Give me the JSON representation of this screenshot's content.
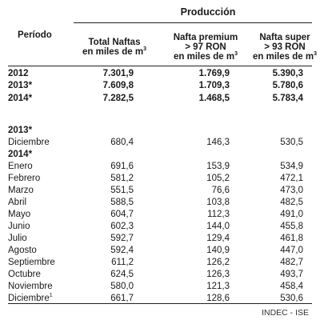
{
  "header": {
    "group_title": "Producción",
    "period_label": "Período",
    "col1": {
      "line1": "Total Naftas",
      "line2_prefix": "en miles de m",
      "line2_sup": "3"
    },
    "col2": {
      "line1": "Nafta premium",
      "line2": "> 97 RON",
      "line3_prefix": "en  miles de m",
      "line3_sup": "3"
    },
    "col3": {
      "line1": "Nafta super",
      "line2": "> 93 RON",
      "line3_prefix": "en miles de m",
      "line3_sup": "3"
    }
  },
  "annual_rows": [
    {
      "label": "2012",
      "total": "7.301,9",
      "premium": "1.769,9",
      "super": "5.390,3"
    },
    {
      "label": "2013*",
      "total": "7.609,8",
      "premium": "1.709,3",
      "super": "5.780,6"
    },
    {
      "label": "2014*",
      "total": "7.282,5",
      "premium": "1.468,5",
      "super": "5.783,4"
    }
  ],
  "section_2013": {
    "title": "2013*",
    "rows": [
      {
        "label": "Diciembre",
        "total": "680,4",
        "premium": "146,3",
        "super": "530,5"
      }
    ]
  },
  "section_2014": {
    "title": "2014*",
    "rows": [
      {
        "label": "Enero",
        "total": "691,6",
        "premium": "153,9",
        "super": "534,9"
      },
      {
        "label": "Febrero",
        "total": "581,2",
        "premium": "105,2",
        "super": "472,1"
      },
      {
        "label": "Marzo",
        "total": "551,5",
        "premium": "76,6",
        "super": "473,0"
      },
      {
        "label": "Abril",
        "total": "588,5",
        "premium": "103,8",
        "super": "482,5"
      },
      {
        "label": "Mayo",
        "total": "604,7",
        "premium": "112,3",
        "super": "491,0"
      },
      {
        "label": "Junio",
        "total": "602,3",
        "premium": "144,0",
        "super": "455,8"
      },
      {
        "label": "Julio",
        "total": "592,7",
        "premium": "129,4",
        "super": "461,8"
      },
      {
        "label": "Agosto",
        "total": "592,4",
        "premium": "140,9",
        "super": "447,0"
      },
      {
        "label": "Septiembre",
        "total": "611,2",
        "premium": "126,2",
        "super": "482,7"
      },
      {
        "label": "Octubre",
        "total": "624,5",
        "premium": "126,3",
        "super": "493,7"
      },
      {
        "label": "Noviembre",
        "total": "580,0",
        "premium": "121,3",
        "super": "458,4"
      },
      {
        "label": "Diciembre",
        "label_sup": "1",
        "total": "661,7",
        "premium": "128,6",
        "super": "530,6"
      }
    ]
  },
  "footer": {
    "source": "INDEC - ISE"
  }
}
